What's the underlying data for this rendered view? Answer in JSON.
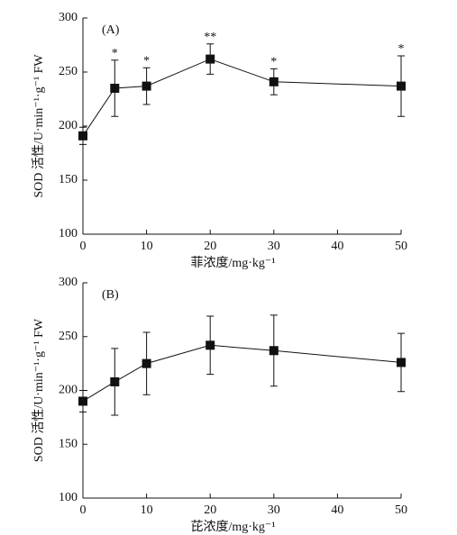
{
  "chart_data": [
    {
      "type": "line",
      "panel_label": "(A)",
      "x_label": "菲浓度/mg·kg⁻¹",
      "y_label": "SOD 活性/U·min⁻¹·g⁻¹ FW",
      "x": [
        0,
        5,
        10,
        20,
        30,
        50
      ],
      "series": [
        {
          "color": "#111111",
          "values": [
            191,
            235,
            237,
            262,
            241,
            237
          ],
          "errors": [
            8,
            26,
            17,
            14,
            12,
            28
          ],
          "annotations": [
            null,
            "*",
            "*",
            "**",
            "*",
            "*"
          ]
        }
      ],
      "xlim": [
        0,
        50
      ],
      "xticks": [
        0,
        10,
        20,
        30,
        40,
        50
      ],
      "ylim": [
        100,
        300
      ],
      "yticks": [
        100,
        150,
        200,
        250,
        300
      ]
    },
    {
      "type": "line",
      "panel_label": "(B)",
      "x_label": "芘浓度/mg·kg⁻¹",
      "y_label": "SOD 活性/U·min⁻¹·g⁻¹ FW",
      "x": [
        0,
        5,
        10,
        20,
        30,
        50
      ],
      "series": [
        {
          "color": "#111111",
          "values": [
            190,
            208,
            225,
            242,
            237,
            226
          ],
          "errors": [
            10,
            31,
            29,
            27,
            33,
            27
          ]
        }
      ],
      "xlim": [
        0,
        50
      ],
      "xticks": [
        0,
        10,
        20,
        30,
        40,
        50
      ],
      "ylim": [
        100,
        300
      ],
      "yticks": [
        100,
        150,
        200,
        250,
        300
      ]
    }
  ]
}
